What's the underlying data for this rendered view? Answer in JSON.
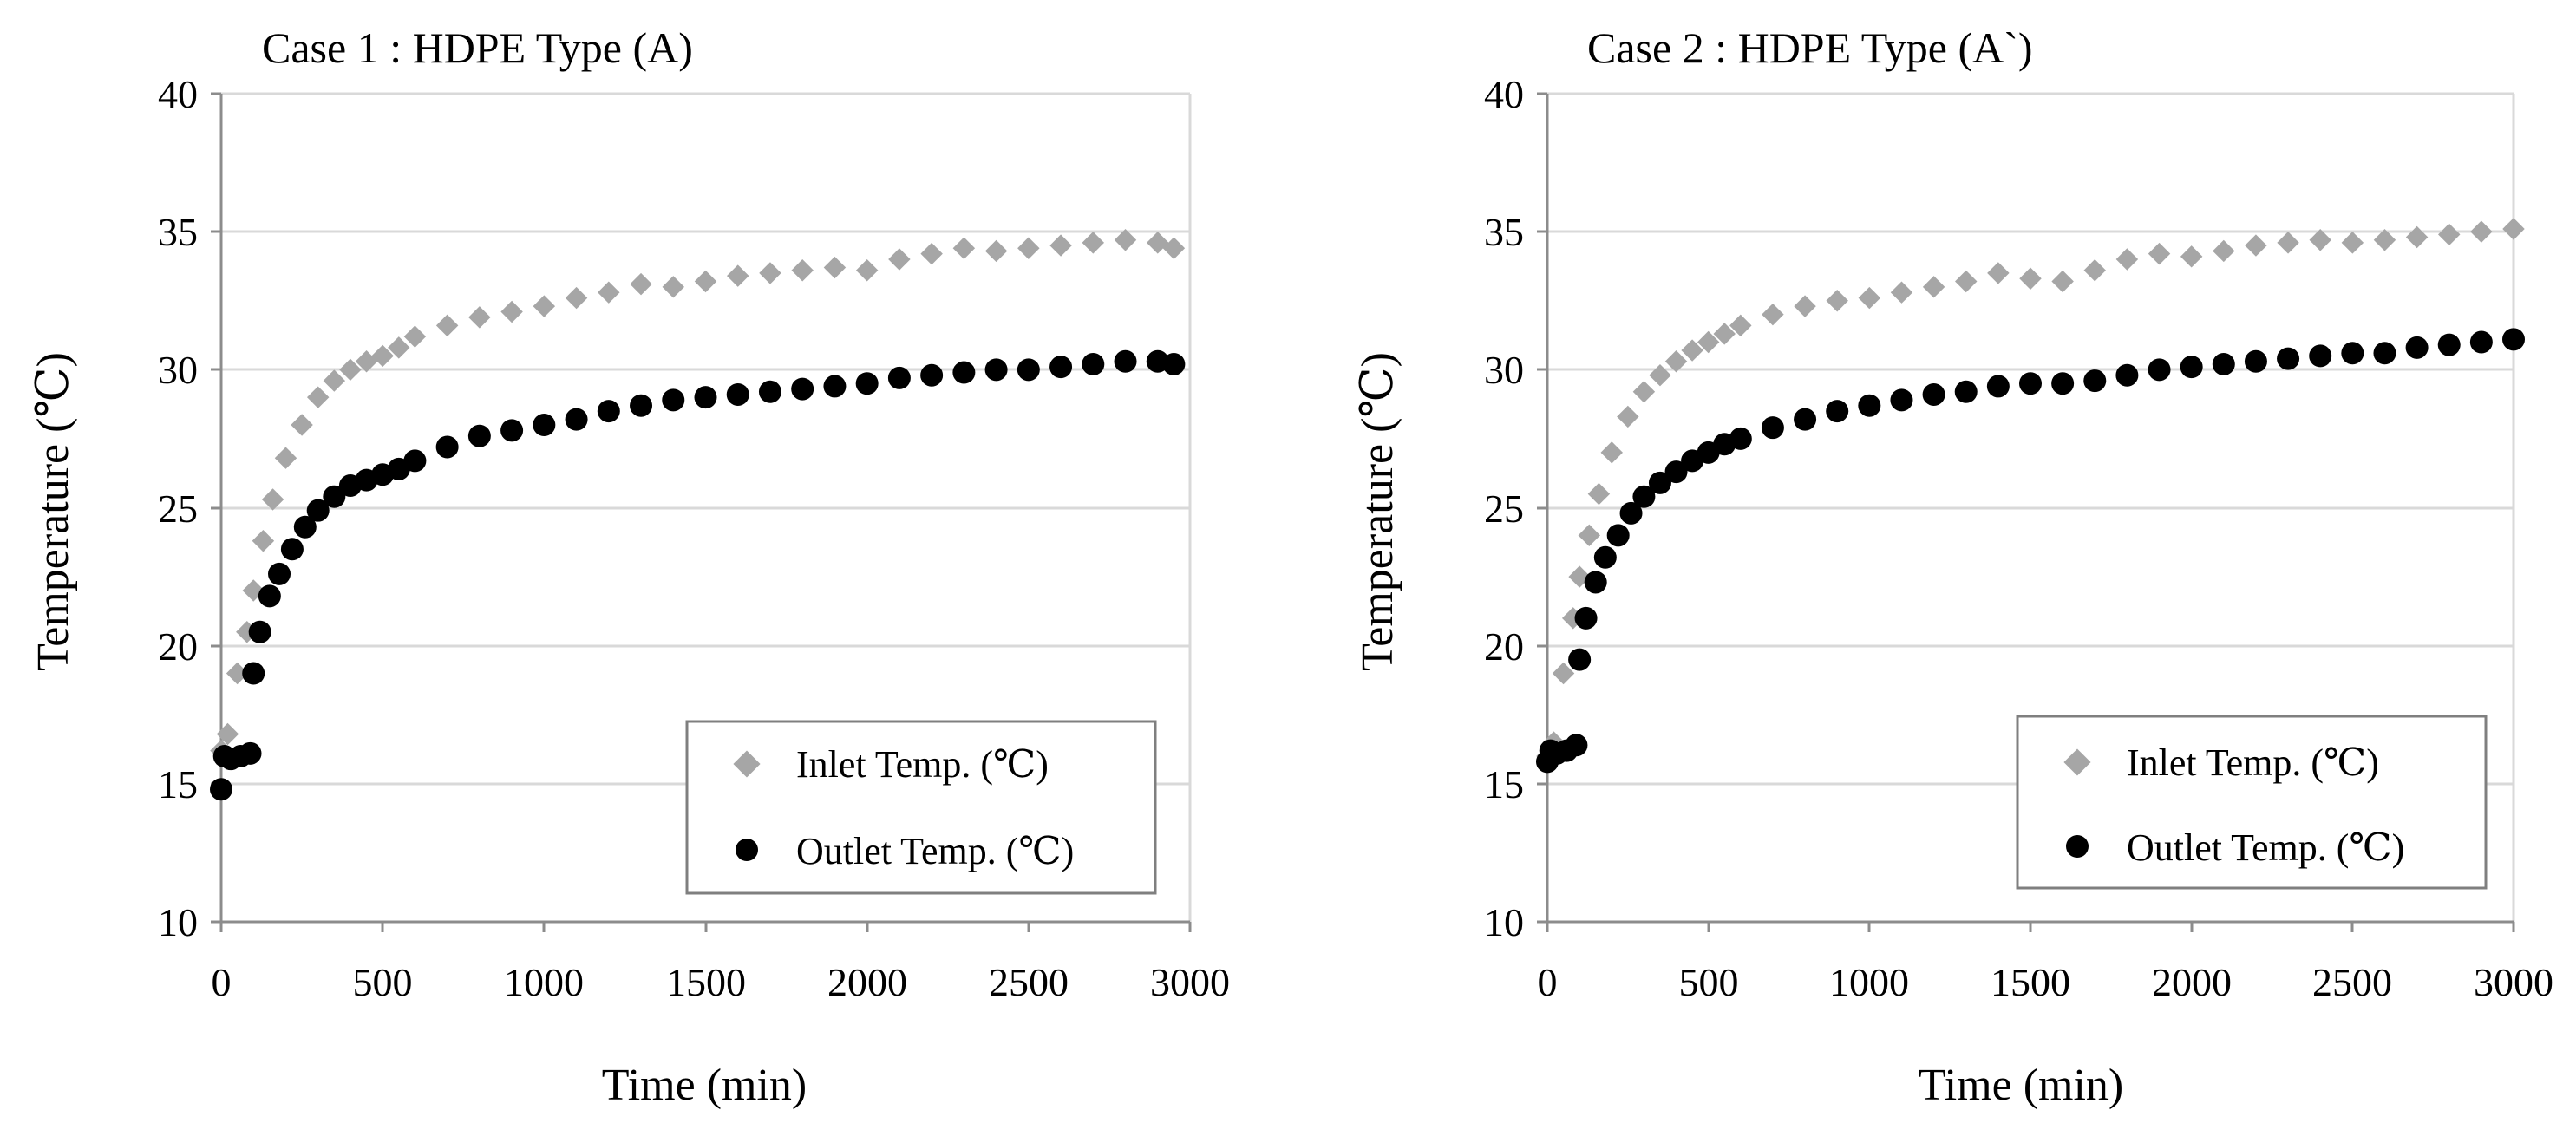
{
  "chart_data": [
    {
      "type": "scatter",
      "title": "Case 1 : HDPE Type (A)",
      "xlabel": "Time (min)",
      "ylabel": "Temperature (℃)",
      "xlim": [
        0,
        3000
      ],
      "ylim": [
        10,
        40
      ],
      "xticks": [
        0,
        500,
        1000,
        1500,
        2000,
        2500,
        3000
      ],
      "yticks": [
        10,
        15,
        20,
        25,
        30,
        35,
        40
      ],
      "grid": true,
      "legend_position": "bottom-right",
      "series": [
        {
          "name": "Inlet Temp. (℃)",
          "marker": "diamond",
          "color": "#a6a6a6",
          "x": [
            0,
            20,
            50,
            80,
            100,
            130,
            160,
            200,
            250,
            300,
            350,
            400,
            450,
            500,
            550,
            600,
            700,
            800,
            900,
            1000,
            1100,
            1200,
            1300,
            1400,
            1500,
            1600,
            1700,
            1800,
            1900,
            2000,
            2100,
            2200,
            2300,
            2400,
            2500,
            2600,
            2700,
            2800,
            2900,
            2950
          ],
          "y": [
            16.2,
            16.8,
            19.0,
            20.5,
            22.0,
            23.8,
            25.3,
            26.8,
            28.0,
            29.0,
            29.6,
            30.0,
            30.3,
            30.5,
            30.8,
            31.2,
            31.6,
            31.9,
            32.1,
            32.3,
            32.6,
            32.8,
            33.1,
            33.0,
            33.2,
            33.4,
            33.5,
            33.6,
            33.7,
            33.6,
            34.0,
            34.2,
            34.4,
            34.3,
            34.4,
            34.5,
            34.6,
            34.7,
            34.6,
            34.4
          ]
        },
        {
          "name": "Outlet Temp. (℃)",
          "marker": "circle",
          "color": "#000000",
          "x": [
            0,
            10,
            30,
            60,
            90,
            100,
            120,
            150,
            180,
            220,
            260,
            300,
            350,
            400,
            450,
            500,
            550,
            600,
            700,
            800,
            900,
            1000,
            1100,
            1200,
            1300,
            1400,
            1500,
            1600,
            1700,
            1800,
            1900,
            2000,
            2100,
            2200,
            2300,
            2400,
            2500,
            2600,
            2700,
            2800,
            2900,
            2950
          ],
          "y": [
            14.8,
            16.0,
            15.9,
            16.0,
            16.1,
            19.0,
            20.5,
            21.8,
            22.6,
            23.5,
            24.3,
            24.9,
            25.4,
            25.8,
            26.0,
            26.2,
            26.4,
            26.7,
            27.2,
            27.6,
            27.8,
            28.0,
            28.2,
            28.5,
            28.7,
            28.9,
            29.0,
            29.1,
            29.2,
            29.3,
            29.4,
            29.5,
            29.7,
            29.8,
            29.9,
            30.0,
            30.0,
            30.1,
            30.2,
            30.3,
            30.3,
            30.2
          ]
        }
      ]
    },
    {
      "type": "scatter",
      "title": "Case 2 : HDPE Type (A`)",
      "xlabel": "Time (min)",
      "ylabel": "Temperature (℃)",
      "xlim": [
        0,
        3000
      ],
      "ylim": [
        10,
        40
      ],
      "xticks": [
        0,
        500,
        1000,
        1500,
        2000,
        2500,
        3000
      ],
      "yticks": [
        10,
        15,
        20,
        25,
        30,
        35,
        40
      ],
      "grid": true,
      "legend_position": "bottom-right",
      "series": [
        {
          "name": "Inlet Temp. (℃)",
          "marker": "diamond",
          "color": "#a6a6a6",
          "x": [
            0,
            20,
            50,
            80,
            100,
            130,
            160,
            200,
            250,
            300,
            350,
            400,
            450,
            500,
            550,
            600,
            700,
            800,
            900,
            1000,
            1100,
            1200,
            1300,
            1400,
            1500,
            1600,
            1700,
            1800,
            1900,
            2000,
            2100,
            2200,
            2300,
            2400,
            2500,
            2600,
            2700,
            2800,
            2900,
            3000
          ],
          "y": [
            16.0,
            16.5,
            19.0,
            21.0,
            22.5,
            24.0,
            25.5,
            27.0,
            28.3,
            29.2,
            29.8,
            30.3,
            30.7,
            31.0,
            31.3,
            31.6,
            32.0,
            32.3,
            32.5,
            32.6,
            32.8,
            33.0,
            33.2,
            33.5,
            33.3,
            33.2,
            33.6,
            34.0,
            34.2,
            34.1,
            34.3,
            34.5,
            34.6,
            34.7,
            34.6,
            34.7,
            34.8,
            34.9,
            35.0,
            35.1
          ]
        },
        {
          "name": "Outlet Temp. (℃)",
          "marker": "circle",
          "color": "#000000",
          "x": [
            0,
            10,
            30,
            60,
            90,
            100,
            120,
            150,
            180,
            220,
            260,
            300,
            350,
            400,
            450,
            500,
            550,
            600,
            700,
            800,
            900,
            1000,
            1100,
            1200,
            1300,
            1400,
            1500,
            1600,
            1700,
            1800,
            1900,
            2000,
            2100,
            2200,
            2300,
            2400,
            2500,
            2600,
            2700,
            2800,
            2900,
            3000
          ],
          "y": [
            15.8,
            16.2,
            16.1,
            16.2,
            16.4,
            19.5,
            21.0,
            22.3,
            23.2,
            24.0,
            24.8,
            25.4,
            25.9,
            26.3,
            26.7,
            27.0,
            27.3,
            27.5,
            27.9,
            28.2,
            28.5,
            28.7,
            28.9,
            29.1,
            29.2,
            29.4,
            29.5,
            29.5,
            29.6,
            29.8,
            30.0,
            30.1,
            30.2,
            30.3,
            30.4,
            30.5,
            30.6,
            30.6,
            30.8,
            30.9,
            31.0,
            31.1
          ]
        }
      ]
    }
  ]
}
